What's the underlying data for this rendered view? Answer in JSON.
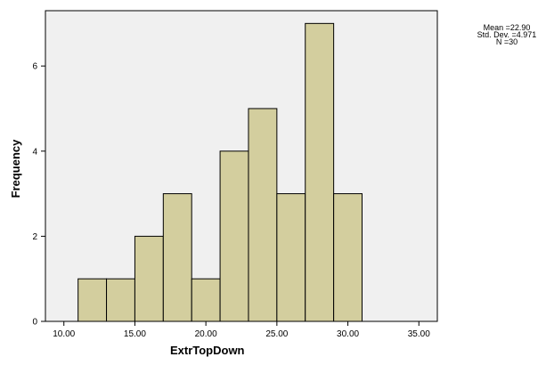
{
  "chart_data": {
    "type": "bar",
    "subtype": "histogram",
    "xlabel": "ExtrTopDown",
    "ylabel": "Frequency",
    "xlim": [
      8.7,
      36.3
    ],
    "ylim": [
      0,
      7.3
    ],
    "x_ticks": [
      10,
      15,
      20,
      25,
      30,
      35
    ],
    "x_tick_labels": [
      "10.00",
      "15.00",
      "20.00",
      "25.00",
      "30.00",
      "35.00"
    ],
    "y_ticks": [
      0,
      2,
      4,
      6
    ],
    "y_tick_labels": [
      "0",
      "2",
      "4",
      "6"
    ],
    "bins": [
      {
        "x0": 11,
        "x1": 13,
        "count": 1
      },
      {
        "x0": 13,
        "x1": 15,
        "count": 1
      },
      {
        "x0": 15,
        "x1": 17,
        "count": 2
      },
      {
        "x0": 17,
        "x1": 19,
        "count": 3
      },
      {
        "x0": 19,
        "x1": 21,
        "count": 1
      },
      {
        "x0": 21,
        "x1": 23,
        "count": 4
      },
      {
        "x0": 23,
        "x1": 25,
        "count": 5
      },
      {
        "x0": 25,
        "x1": 27,
        "count": 3
      },
      {
        "x0": 27,
        "x1": 29,
        "count": 7
      },
      {
        "x0": 29,
        "x1": 31,
        "count": 3
      }
    ],
    "stats": [
      "Mean =22.90",
      "Std. Dev. =4.971",
      "N =30"
    ],
    "grid": false,
    "colors": {
      "plot_background": "#f0f0f0",
      "bar_fill": "#d3ce9e",
      "bar_stroke": "#000000",
      "axis": "#000000"
    }
  }
}
